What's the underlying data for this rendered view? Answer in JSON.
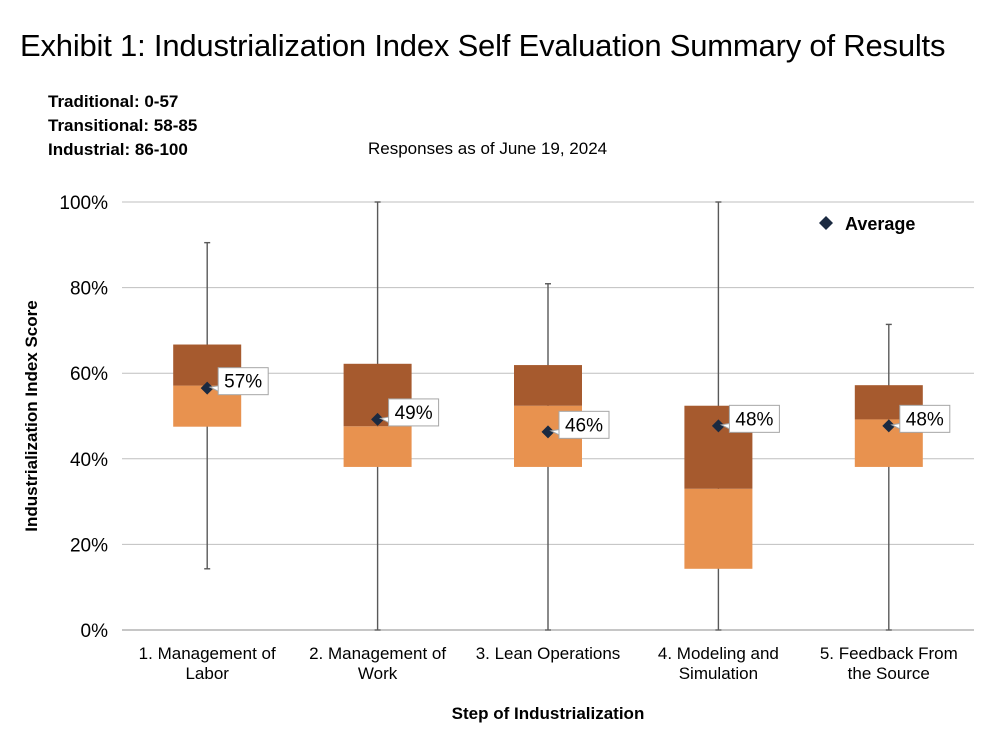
{
  "title": "Exhibit 1: Industrialization Index Self Evaluation Summary of Results",
  "ranges": [
    "Traditional: 0-57",
    "Transitional: 58-85",
    "Industrial: 86-100"
  ],
  "note": "Responses as of June 19, 2024",
  "chart_data": {
    "type": "boxplot",
    "xlabel": "Step of Industrialization",
    "ylabel": "Industrialization Index Score",
    "ylim": [
      0,
      100
    ],
    "yticks": [
      "0%",
      "20%",
      "40%",
      "60%",
      "80%",
      "100%"
    ],
    "grid": true,
    "legend": {
      "label": "Average",
      "position": "top-right"
    },
    "colors": {
      "upper_box": "#a65a2e",
      "lower_box": "#e8924f",
      "marker": "#1b2a41",
      "whisker": "#595959",
      "grid": "#bfbfbf"
    },
    "categories": [
      [
        "1. Management of",
        "Labor"
      ],
      [
        "2. Management of",
        "Work"
      ],
      [
        "3. Lean Operations"
      ],
      [
        "4. Modeling and",
        "Simulation"
      ],
      [
        "5. Feedback From",
        "the Source"
      ]
    ],
    "series": [
      {
        "min": 14.3,
        "q1": 47.5,
        "median": 57.1,
        "q3": 66.7,
        "max": 90.5,
        "average": 56.5,
        "label": "57%"
      },
      {
        "min": 0,
        "q1": 38.1,
        "median": 47.6,
        "q3": 62.2,
        "max": 100,
        "average": 49.2,
        "label": "49%"
      },
      {
        "min": 0,
        "q1": 38.1,
        "median": 52.4,
        "q3": 61.9,
        "max": 80.9,
        "average": 46.3,
        "label": "46%"
      },
      {
        "min": 0,
        "q1": 14.3,
        "median": 33.0,
        "q3": 52.4,
        "max": 100,
        "average": 47.7,
        "label": "48%"
      },
      {
        "min": 0,
        "q1": 38.1,
        "median": 49.2,
        "q3": 57.2,
        "max": 71.4,
        "average": 47.7,
        "label": "48%"
      }
    ]
  }
}
